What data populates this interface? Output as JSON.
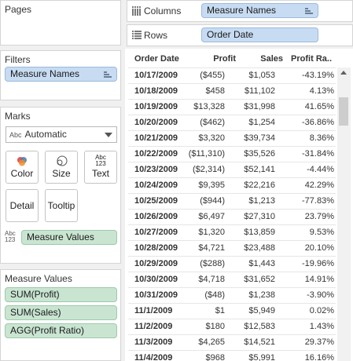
{
  "pages": {
    "title": "Pages"
  },
  "filters": {
    "title": "Filters",
    "pill": "Measure Names"
  },
  "marks": {
    "title": "Marks",
    "type_abbr": "Abc",
    "type": "Automatic",
    "buttons": {
      "color": "Color",
      "size": "Size",
      "text": "Text",
      "detail": "Detail",
      "tooltip": "Tooltip"
    },
    "text_icon": "Abc\n123",
    "measure_values_icon": "Abc\n123",
    "measure_values_pill": "Measure Values"
  },
  "measure_values": {
    "title": "Measure Values",
    "items": [
      "SUM(Profit)",
      "SUM(Sales)",
      "AGG(Profit Ratio)"
    ]
  },
  "columns": {
    "label": "Columns",
    "pill": "Measure Names"
  },
  "rows": {
    "label": "Rows",
    "pill": "Order Date"
  },
  "colors": {
    "blue_pill": "#c7dcf2",
    "green_pill": "#c9e5d2"
  },
  "table": {
    "headers": {
      "date": "Order Date",
      "profit": "Profit",
      "sales": "Sales",
      "ratio": "Profit Ra.."
    },
    "rows": [
      {
        "date": "10/17/2009",
        "profit": "($455)",
        "sales": "$1,053",
        "ratio": "-43.19%"
      },
      {
        "date": "10/18/2009",
        "profit": "$458",
        "sales": "$11,102",
        "ratio": "4.13%"
      },
      {
        "date": "10/19/2009",
        "profit": "$13,328",
        "sales": "$31,998",
        "ratio": "41.65%"
      },
      {
        "date": "10/20/2009",
        "profit": "($462)",
        "sales": "$1,254",
        "ratio": "-36.86%"
      },
      {
        "date": "10/21/2009",
        "profit": "$3,320",
        "sales": "$39,734",
        "ratio": "8.36%"
      },
      {
        "date": "10/22/2009",
        "profit": "($11,310)",
        "sales": "$35,526",
        "ratio": "-31.84%"
      },
      {
        "date": "10/23/2009",
        "profit": "($2,314)",
        "sales": "$52,141",
        "ratio": "-4.44%"
      },
      {
        "date": "10/24/2009",
        "profit": "$9,395",
        "sales": "$22,216",
        "ratio": "42.29%"
      },
      {
        "date": "10/25/2009",
        "profit": "($944)",
        "sales": "$1,213",
        "ratio": "-77.83%"
      },
      {
        "date": "10/26/2009",
        "profit": "$6,497",
        "sales": "$27,310",
        "ratio": "23.79%"
      },
      {
        "date": "10/27/2009",
        "profit": "$1,320",
        "sales": "$13,859",
        "ratio": "9.53%"
      },
      {
        "date": "10/28/2009",
        "profit": "$4,721",
        "sales": "$23,488",
        "ratio": "20.10%"
      },
      {
        "date": "10/29/2009",
        "profit": "($288)",
        "sales": "$1,443",
        "ratio": "-19.96%"
      },
      {
        "date": "10/30/2009",
        "profit": "$4,718",
        "sales": "$31,652",
        "ratio": "14.91%"
      },
      {
        "date": "10/31/2009",
        "profit": "($48)",
        "sales": "$1,238",
        "ratio": "-3.90%"
      },
      {
        "date": "11/1/2009",
        "profit": "$1",
        "sales": "$5,949",
        "ratio": "0.02%"
      },
      {
        "date": "11/2/2009",
        "profit": "$180",
        "sales": "$12,583",
        "ratio": "1.43%"
      },
      {
        "date": "11/3/2009",
        "profit": "$4,265",
        "sales": "$14,521",
        "ratio": "29.37%"
      },
      {
        "date": "11/4/2009",
        "profit": "$968",
        "sales": "$5,991",
        "ratio": "16.16%"
      }
    ]
  }
}
